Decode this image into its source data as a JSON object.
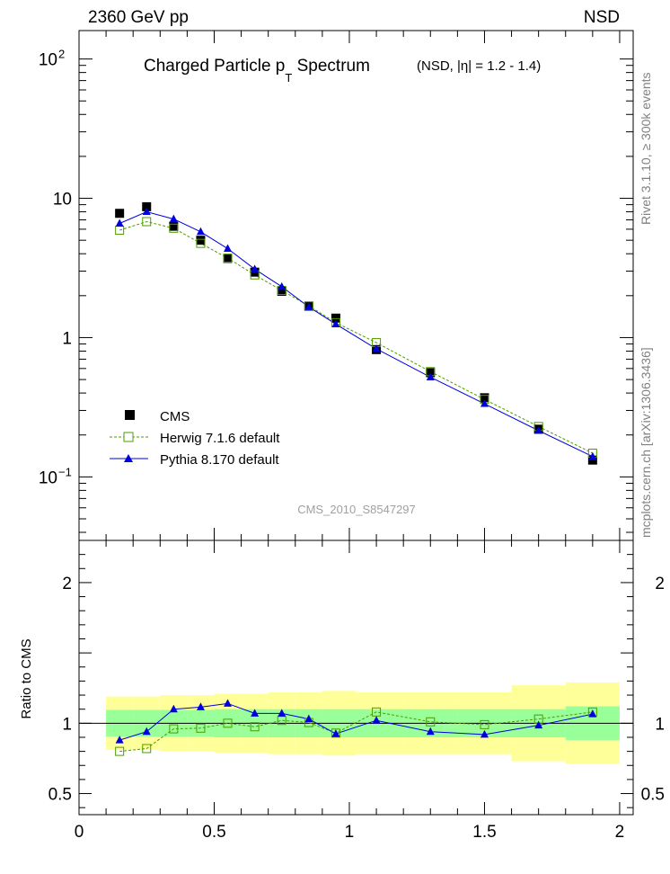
{
  "header": {
    "left": "2360 GeV pp",
    "right": "NSD"
  },
  "side_labels": {
    "top": "Rivet 3.1.10, ≥ 300k events",
    "bottom": "mcplots.cern.ch [arXiv:1306.3436]"
  },
  "watermark": "CMS_2010_S8547297",
  "chart_data": [
    {
      "panel": "main",
      "type": "scatter",
      "title": "Charged Particle p_T Spectrum (NSD, |η| = 1.2 - 1.4)",
      "title_main": "Charged Particle p",
      "title_sub": "T",
      "title_after": " Spectrum",
      "title_qualifier": "(NSD, |η| = 1.2 - 1.4)",
      "xlabel": "",
      "ylabel": "",
      "y_scale": "log",
      "xlim": [
        0,
        2.05
      ],
      "ylim": [
        0.035,
        160
      ],
      "y_ticks": [
        "10^-1",
        "1",
        "10",
        "10^2"
      ],
      "legend_position": "lower-left",
      "x": [
        0.15,
        0.25,
        0.35,
        0.45,
        0.55,
        0.65,
        0.75,
        0.85,
        0.95,
        1.1,
        1.3,
        1.5,
        1.7,
        1.9
      ],
      "series": [
        {
          "name": "CMS",
          "color": "#000000",
          "marker": "filled-square",
          "values": [
            7.8,
            8.7,
            6.3,
            5.0,
            3.7,
            2.95,
            2.15,
            1.68,
            1.38,
            0.82,
            0.56,
            0.37,
            0.22,
            0.132
          ],
          "band_inner": [
            0.095,
            0.095,
            0.095,
            0.095,
            0.1,
            0.1,
            0.1,
            0.1,
            0.1,
            0.1,
            0.1,
            0.1,
            0.1,
            0.12
          ],
          "band_outer": [
            0.19,
            0.19,
            0.2,
            0.2,
            0.21,
            0.21,
            0.22,
            0.22,
            0.23,
            0.22,
            0.22,
            0.22,
            0.27,
            0.29
          ]
        },
        {
          "name": "Herwig 7.1.6 default",
          "color": "#4d9b00",
          "marker": "open-square",
          "line": "dashed",
          "values": [
            5.9,
            6.8,
            6.1,
            4.75,
            3.72,
            2.82,
            2.18,
            1.69,
            1.28,
            0.92,
            0.57,
            0.36,
            0.23,
            0.148
          ]
        },
        {
          "name": "Pythia 8.170 default",
          "color": "#0000dd",
          "marker": "filled-triangle",
          "line": "solid",
          "values": [
            6.6,
            8.0,
            7.1,
            5.75,
            4.35,
            3.1,
            2.32,
            1.66,
            1.25,
            0.83,
            0.52,
            0.335,
            0.215,
            0.14
          ]
        }
      ]
    },
    {
      "panel": "ratio",
      "type": "scatter",
      "ylabel": "Ratio to CMS",
      "xlabel": "",
      "xlim": [
        0,
        2.05
      ],
      "ylim": [
        0.35,
        2.3
      ],
      "y_ticks": [
        "0.5",
        "1",
        "2"
      ],
      "x_ticks": [
        "0",
        "0.5",
        "1",
        "1.5",
        "2"
      ],
      "reference_line": 1,
      "x": [
        0.15,
        0.25,
        0.35,
        0.45,
        0.55,
        0.65,
        0.75,
        0.85,
        0.95,
        1.1,
        1.3,
        1.5,
        1.7,
        1.9
      ],
      "series": [
        {
          "name": "Herwig 7.1.6 default",
          "color": "#4d9b00",
          "values": [
            0.8,
            0.82,
            0.96,
            0.965,
            1.0,
            0.975,
            1.02,
            1.005,
            0.93,
            1.08,
            1.01,
            0.99,
            1.03,
            1.08
          ]
        },
        {
          "name": "Pythia 8.170 default",
          "color": "#0000dd",
          "values": [
            0.88,
            0.94,
            1.1,
            1.115,
            1.14,
            1.07,
            1.07,
            1.03,
            0.925,
            1.02,
            0.94,
            0.92,
            0.985,
            1.065
          ]
        }
      ]
    }
  ]
}
